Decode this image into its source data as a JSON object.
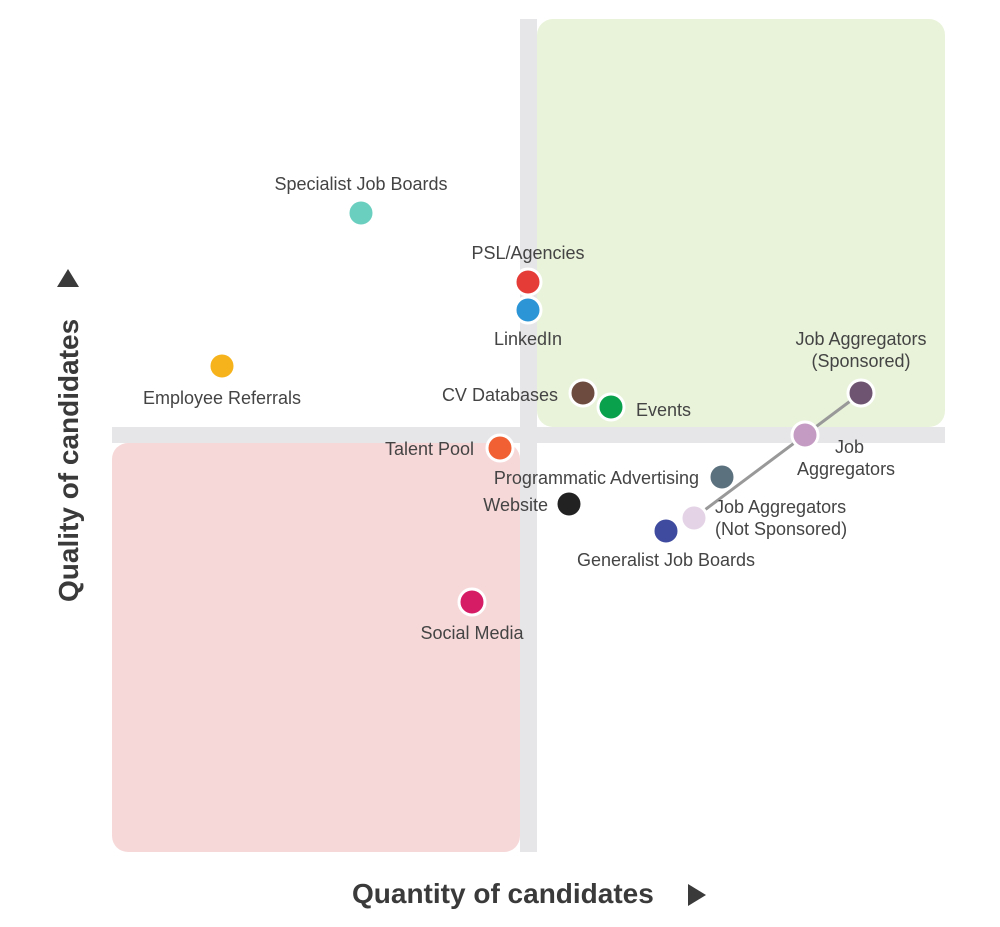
{
  "chart_data": {
    "type": "scatter",
    "title": "",
    "xlabel": "Quantity of candidates",
    "ylabel": "Quality of candidates",
    "grid": false,
    "quadrants": {
      "top_right_color": "#e9f3da",
      "bottom_left_color": "#f7d8d9",
      "divider_color": "#e6e5e8"
    },
    "points": [
      {
        "key": "specialist-job-boards",
        "label": [
          "Specialist Job Boards"
        ],
        "color": "#6bcfc0"
      },
      {
        "key": "psl-agencies",
        "label": [
          "PSL/Agencies"
        ],
        "color": "#e53c38"
      },
      {
        "key": "linkedin",
        "label": [
          "LinkedIn"
        ],
        "color": "#2b95d6"
      },
      {
        "key": "employee-referrals",
        "label": [
          "Employee Referrals"
        ],
        "color": "#f6b31b"
      },
      {
        "key": "cv-databases",
        "label": [
          "CV Databases"
        ],
        "color": "#6d4b3f"
      },
      {
        "key": "events",
        "label": [
          "Events"
        ],
        "color": "#0aa14c"
      },
      {
        "key": "talent-pool",
        "label": [
          "Talent Pool"
        ],
        "color": "#f06032"
      },
      {
        "key": "programmatic-advertising",
        "label": [
          "Programmatic Advertising"
        ],
        "color": "#5b717e"
      },
      {
        "key": "website",
        "label": [
          "Website"
        ],
        "color": "#222222"
      },
      {
        "key": "social-media",
        "label": [
          "Social Media"
        ],
        "color": "#d51c65"
      },
      {
        "key": "job-aggregators-sponsored",
        "label": [
          "Job Aggregators",
          "(Sponsored)"
        ],
        "color": "#6e5470"
      },
      {
        "key": "job-aggregators",
        "label": [
          "Job",
          "Aggregators"
        ],
        "color": "#c49bc2"
      },
      {
        "key": "job-aggregators-not-sponsored",
        "label": [
          "Job Aggregators",
          "(Not Sponsored)"
        ],
        "color": "#e4d3e6"
      },
      {
        "key": "generalist-job-boards",
        "label": [
          "Generalist Job Boards"
        ],
        "color": "#3f4b9f"
      }
    ],
    "connector": [
      "job-aggregators-sponsored",
      "job-aggregators",
      "job-aggregators-not-sponsored"
    ],
    "connector_color": "#999999",
    "axis_color": "#3a3a3a"
  }
}
